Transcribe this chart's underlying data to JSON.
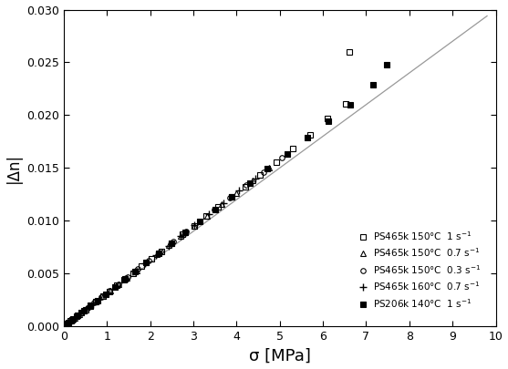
{
  "title": "",
  "xlabel": "σ [MPa]",
  "ylabel": "|Δn|",
  "xlim": [
    0,
    10
  ],
  "ylim": [
    0,
    0.03
  ],
  "xticks": [
    0,
    1,
    2,
    3,
    4,
    5,
    6,
    7,
    8,
    9,
    10
  ],
  "yticks": [
    0.0,
    0.005,
    0.01,
    0.015,
    0.02,
    0.025,
    0.03
  ],
  "line_x": [
    0,
    9.8
  ],
  "line_y": [
    0,
    0.0294
  ],
  "series": [
    {
      "label": "PS465k 150°C  1 s$^{-1}$",
      "marker": "s",
      "facecolor": "none",
      "x": [
        0.08,
        0.15,
        0.22,
        0.3,
        0.4,
        0.5,
        0.62,
        0.75,
        0.9,
        1.05,
        1.22,
        1.4,
        1.6,
        1.8,
        2.02,
        2.25,
        2.5,
        2.75,
        3.02,
        3.3,
        3.58,
        3.88,
        4.2,
        4.55,
        4.92,
        5.3,
        5.7,
        6.1,
        6.52,
        6.62
      ],
      "y": [
        0.00025,
        0.00048,
        0.0007,
        0.00095,
        0.00126,
        0.00158,
        0.00196,
        0.00237,
        0.00284,
        0.00332,
        0.00385,
        0.00442,
        0.00505,
        0.00568,
        0.00638,
        0.00712,
        0.0079,
        0.00868,
        0.00954,
        0.01042,
        0.0113,
        0.01225,
        0.01325,
        0.01435,
        0.01555,
        0.0168,
        0.0181,
        0.01965,
        0.0211,
        0.026
      ]
    },
    {
      "label": "PS465k 150°C  0.7 s$^{-1}$",
      "marker": "^",
      "facecolor": "none",
      "x": [
        0.08,
        0.16,
        0.25,
        0.35,
        0.47,
        0.6,
        0.74,
        0.9,
        1.07,
        1.26,
        1.46,
        1.68,
        1.91,
        2.16,
        2.43,
        2.71,
        3.01,
        3.32,
        3.65,
        4.0,
        4.37,
        4.76,
        5.17
      ],
      "y": [
        0.00025,
        0.0005,
        0.00079,
        0.00111,
        0.00148,
        0.0019,
        0.00234,
        0.00284,
        0.00338,
        0.00398,
        0.00461,
        0.00531,
        0.00604,
        0.00682,
        0.00768,
        0.00856,
        0.00951,
        0.01048,
        0.01153,
        0.01264,
        0.0138,
        0.01504,
        0.01635
      ]
    },
    {
      "label": "PS465k 150°C  0.3 s$^{-1}$",
      "marker": "o",
      "facecolor": "none",
      "x": [
        0.09,
        0.18,
        0.29,
        0.41,
        0.55,
        0.7,
        0.87,
        1.06,
        1.26,
        1.48,
        1.72,
        1.97,
        2.24,
        2.53,
        2.83,
        3.15,
        3.49,
        3.85,
        4.23,
        4.63,
        5.05
      ],
      "y": [
        0.00028,
        0.00057,
        0.00091,
        0.0013,
        0.00174,
        0.00221,
        0.00275,
        0.00335,
        0.00398,
        0.00467,
        0.00543,
        0.00622,
        0.00707,
        0.00799,
        0.00894,
        0.00995,
        0.01102,
        0.01216,
        0.01336,
        0.01462,
        0.01595
      ]
    },
    {
      "label": "PS465k 160°C  0.7 s$^{-1}$",
      "marker": "+",
      "facecolor": "none",
      "x": [
        0.08,
        0.17,
        0.27,
        0.39,
        0.52,
        0.67,
        0.83,
        1.01,
        1.2,
        1.41,
        1.64,
        1.88,
        2.14,
        2.42,
        2.71,
        3.02,
        3.35,
        3.7,
        4.06,
        4.44
      ],
      "y": [
        0.00025,
        0.00054,
        0.00085,
        0.00122,
        0.00164,
        0.00211,
        0.00262,
        0.00319,
        0.0038,
        0.00446,
        0.00518,
        0.00594,
        0.00676,
        0.00764,
        0.00857,
        0.00955,
        0.01058,
        0.01168,
        0.01283,
        0.01403
      ]
    },
    {
      "label": "PS206k 140°C  1 s$^{-1}$",
      "marker": "s",
      "facecolor": "black",
      "x": [
        0.1,
        0.2,
        0.32,
        0.46,
        0.61,
        0.78,
        0.97,
        1.18,
        1.41,
        1.65,
        1.91,
        2.19,
        2.49,
        2.81,
        3.15,
        3.51,
        3.89,
        4.3,
        4.72,
        5.17,
        5.64,
        6.13,
        6.64,
        7.17,
        7.48
      ],
      "y": [
        0.00032,
        0.00063,
        0.00101,
        0.00145,
        0.00193,
        0.00246,
        0.00306,
        0.00373,
        0.00445,
        0.00521,
        0.00603,
        0.00692,
        0.00787,
        0.00887,
        0.00995,
        0.01108,
        0.01228,
        0.01357,
        0.01492,
        0.01635,
        0.01784,
        0.0194,
        0.021,
        0.0229,
        0.0248
      ]
    }
  ],
  "background_color": "#ffffff",
  "line_color": "#999999"
}
